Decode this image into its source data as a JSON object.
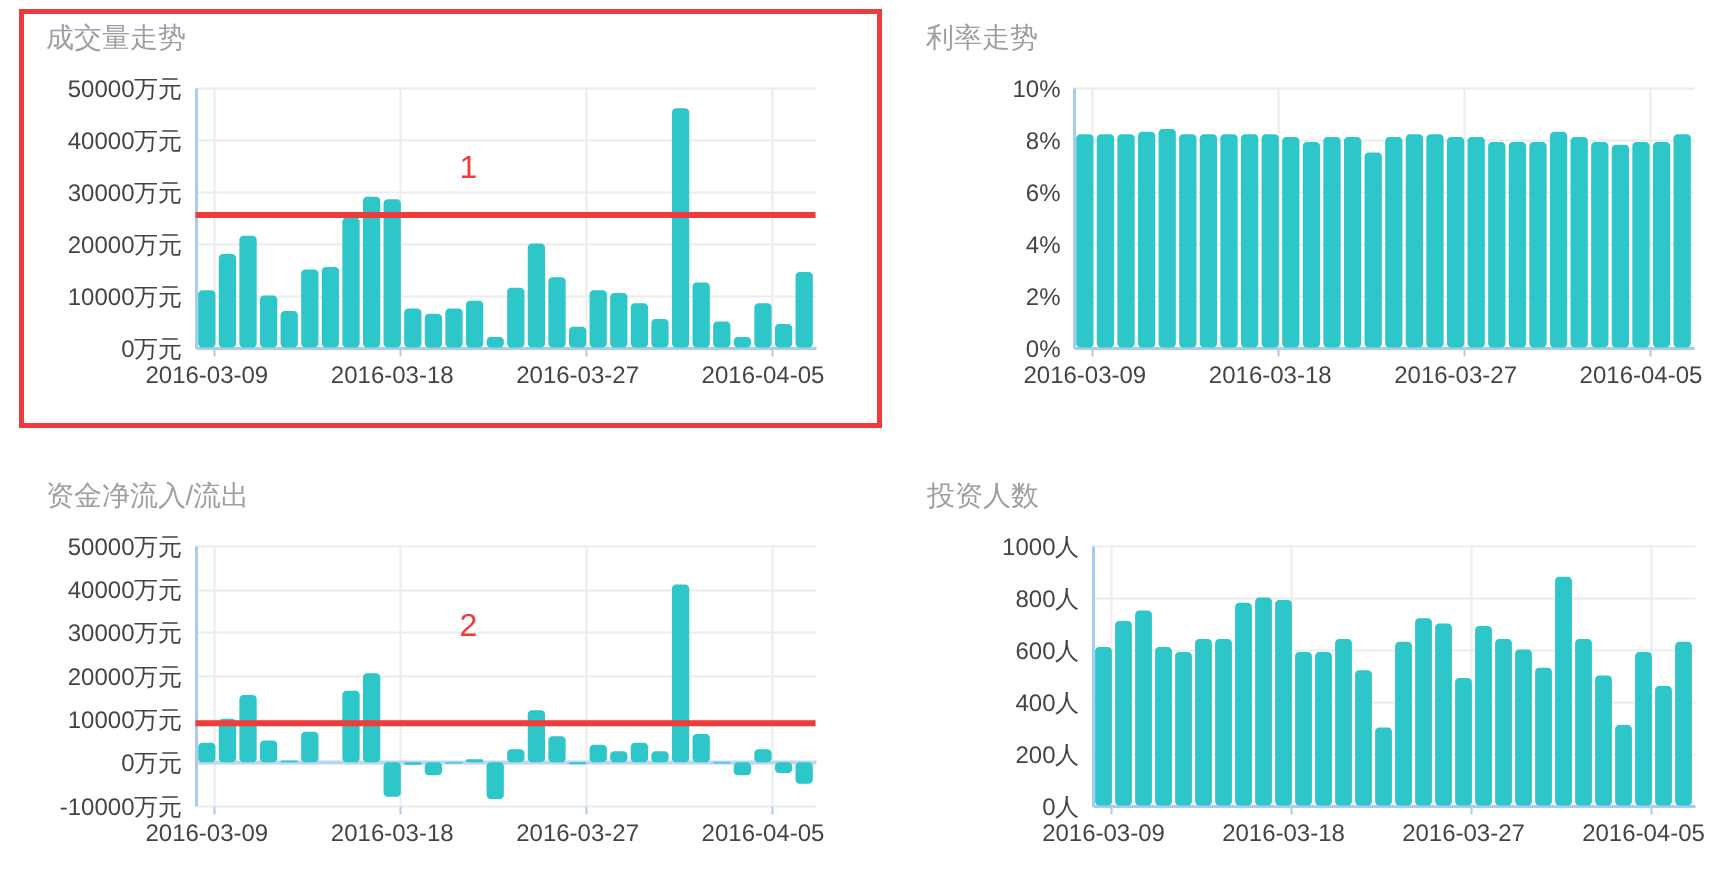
{
  "chart_data": [
    {
      "type": "bar",
      "title": "成交量走势",
      "categories": [
        "2016-03-09",
        null,
        null,
        null,
        null,
        null,
        null,
        null,
        null,
        "2016-03-18",
        null,
        null,
        null,
        null,
        null,
        null,
        null,
        null,
        "2016-03-27",
        null,
        null,
        null,
        null,
        null,
        null,
        null,
        null,
        "2016-04-05",
        null,
        null
      ],
      "values": [
        11000,
        18000,
        21500,
        10000,
        7000,
        15000,
        15500,
        25000,
        29000,
        28500,
        7500,
        6500,
        7500,
        9000,
        2000,
        11500,
        20000,
        13500,
        4000,
        11000,
        10500,
        8500,
        5500,
        46000,
        12500,
        5000,
        2000,
        8500,
        4500,
        14500
      ],
      "color": "#2ec7c9",
      "ylim": [
        0,
        50000
      ],
      "yticks": [
        {
          "value": 0,
          "label": "0万元"
        },
        {
          "value": 10000,
          "label": "10000万元"
        },
        {
          "value": 20000,
          "label": "20000万元"
        },
        {
          "value": 30000,
          "label": "30000万元"
        },
        {
          "value": 40000,
          "label": "40000万元"
        },
        {
          "value": 50000,
          "label": "50000万元"
        }
      ],
      "grid": true,
      "ref_lines": [
        {
          "axis": "y",
          "value": 25500,
          "color": "#ef3b3b"
        }
      ],
      "annotations": [
        "1"
      ]
    },
    {
      "type": "bar",
      "title": "利率走势",
      "categories": [
        "2016-03-09",
        null,
        null,
        null,
        null,
        null,
        null,
        null,
        null,
        "2016-03-18",
        null,
        null,
        null,
        null,
        null,
        null,
        null,
        null,
        "2016-03-27",
        null,
        null,
        null,
        null,
        null,
        null,
        null,
        null,
        "2016-04-05",
        null,
        null
      ],
      "values": [
        8.2,
        8.2,
        8.2,
        8.3,
        8.4,
        8.2,
        8.2,
        8.2,
        8.2,
        8.2,
        8.1,
        7.9,
        8.1,
        8.1,
        7.5,
        8.1,
        8.2,
        8.2,
        8.1,
        8.1,
        7.9,
        7.9,
        7.9,
        8.3,
        8.1,
        7.9,
        7.8,
        7.9,
        7.9,
        8.2
      ],
      "color": "#2ec7c9",
      "ylim": [
        0,
        10
      ],
      "yticks": [
        {
          "value": 0,
          "label": "0%"
        },
        {
          "value": 2,
          "label": "2%"
        },
        {
          "value": 4,
          "label": "4%"
        },
        {
          "value": 6,
          "label": "6%"
        },
        {
          "value": 8,
          "label": "8%"
        },
        {
          "value": 10,
          "label": "10%"
        }
      ],
      "grid": true
    },
    {
      "type": "bar",
      "title": "资金净流入/流出",
      "categories": [
        "2016-03-09",
        null,
        null,
        null,
        null,
        null,
        null,
        null,
        null,
        "2016-03-18",
        null,
        null,
        null,
        null,
        null,
        null,
        null,
        null,
        "2016-03-27",
        null,
        null,
        null,
        null,
        null,
        null,
        null,
        null,
        "2016-04-05",
        null,
        null
      ],
      "values": [
        4500,
        10000,
        15500,
        5000,
        400,
        7000,
        null,
        16500,
        20500,
        -8000,
        -600,
        -3000,
        -300,
        700,
        -8500,
        3000,
        12000,
        6000,
        -500,
        4000,
        2500,
        4500,
        2500,
        41000,
        6500,
        -300,
        -3000,
        3000,
        -2500,
        -5000
      ],
      "color": "#2ec7c9",
      "ylim": [
        -10000,
        50000
      ],
      "yticks": [
        {
          "value": -10000,
          "label": "-10000万元"
        },
        {
          "value": 0,
          "label": "0万元"
        },
        {
          "value": 10000,
          "label": "10000万元"
        },
        {
          "value": 20000,
          "label": "20000万元"
        },
        {
          "value": 30000,
          "label": "30000万元"
        },
        {
          "value": 40000,
          "label": "40000万元"
        },
        {
          "value": 50000,
          "label": "50000万元"
        }
      ],
      "grid": true,
      "ref_lines": [
        {
          "axis": "y",
          "value": 0,
          "color": "#bcd6f2"
        },
        {
          "axis": "y",
          "value": 9000,
          "color": "#ef3b3b"
        }
      ],
      "annotations": [
        "2"
      ]
    },
    {
      "type": "bar",
      "title": "投资人数",
      "categories": [
        "2016-03-09",
        null,
        null,
        null,
        null,
        null,
        null,
        null,
        null,
        "2016-03-18",
        null,
        null,
        null,
        null,
        null,
        null,
        null,
        null,
        "2016-03-27",
        null,
        null,
        null,
        null,
        null,
        null,
        null,
        null,
        "2016-04-05",
        null,
        null
      ],
      "values": [
        610,
        710,
        750,
        610,
        590,
        640,
        640,
        780,
        800,
        790,
        590,
        590,
        640,
        520,
        300,
        630,
        720,
        700,
        490,
        690,
        640,
        600,
        530,
        880,
        640,
        500,
        310,
        590,
        460,
        630
      ],
      "color": "#2ec7c9",
      "ylim": [
        0,
        1000
      ],
      "yticks": [
        {
          "value": 0,
          "label": "0人"
        },
        {
          "value": 200,
          "label": "200人"
        },
        {
          "value": 400,
          "label": "400人"
        },
        {
          "value": 600,
          "label": "600人"
        },
        {
          "value": 800,
          "label": "800人"
        },
        {
          "value": 1000,
          "label": "1000人"
        }
      ],
      "grid": true
    }
  ]
}
